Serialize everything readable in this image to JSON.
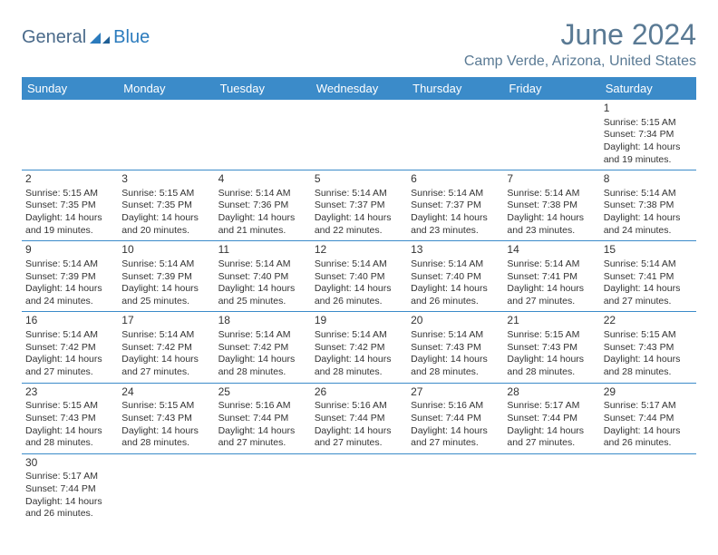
{
  "logo": {
    "part1": "General",
    "part2": "Blue"
  },
  "title": "June 2024",
  "location": "Camp Verde, Arizona, United States",
  "colors": {
    "header_bg": "#3b8bc9",
    "header_text": "#ffffff",
    "title_color": "#5a7a94",
    "border_color": "#3b8bc9",
    "body_text": "#333333"
  },
  "daysOfWeek": [
    "Sunday",
    "Monday",
    "Tuesday",
    "Wednesday",
    "Thursday",
    "Friday",
    "Saturday"
  ],
  "weeks": [
    [
      null,
      null,
      null,
      null,
      null,
      null,
      {
        "n": "1",
        "sr": "Sunrise: 5:15 AM",
        "ss": "Sunset: 7:34 PM",
        "d1": "Daylight: 14 hours",
        "d2": "and 19 minutes."
      }
    ],
    [
      {
        "n": "2",
        "sr": "Sunrise: 5:15 AM",
        "ss": "Sunset: 7:35 PM",
        "d1": "Daylight: 14 hours",
        "d2": "and 19 minutes."
      },
      {
        "n": "3",
        "sr": "Sunrise: 5:15 AM",
        "ss": "Sunset: 7:35 PM",
        "d1": "Daylight: 14 hours",
        "d2": "and 20 minutes."
      },
      {
        "n": "4",
        "sr": "Sunrise: 5:14 AM",
        "ss": "Sunset: 7:36 PM",
        "d1": "Daylight: 14 hours",
        "d2": "and 21 minutes."
      },
      {
        "n": "5",
        "sr": "Sunrise: 5:14 AM",
        "ss": "Sunset: 7:37 PM",
        "d1": "Daylight: 14 hours",
        "d2": "and 22 minutes."
      },
      {
        "n": "6",
        "sr": "Sunrise: 5:14 AM",
        "ss": "Sunset: 7:37 PM",
        "d1": "Daylight: 14 hours",
        "d2": "and 23 minutes."
      },
      {
        "n": "7",
        "sr": "Sunrise: 5:14 AM",
        "ss": "Sunset: 7:38 PM",
        "d1": "Daylight: 14 hours",
        "d2": "and 23 minutes."
      },
      {
        "n": "8",
        "sr": "Sunrise: 5:14 AM",
        "ss": "Sunset: 7:38 PM",
        "d1": "Daylight: 14 hours",
        "d2": "and 24 minutes."
      }
    ],
    [
      {
        "n": "9",
        "sr": "Sunrise: 5:14 AM",
        "ss": "Sunset: 7:39 PM",
        "d1": "Daylight: 14 hours",
        "d2": "and 24 minutes."
      },
      {
        "n": "10",
        "sr": "Sunrise: 5:14 AM",
        "ss": "Sunset: 7:39 PM",
        "d1": "Daylight: 14 hours",
        "d2": "and 25 minutes."
      },
      {
        "n": "11",
        "sr": "Sunrise: 5:14 AM",
        "ss": "Sunset: 7:40 PM",
        "d1": "Daylight: 14 hours",
        "d2": "and 25 minutes."
      },
      {
        "n": "12",
        "sr": "Sunrise: 5:14 AM",
        "ss": "Sunset: 7:40 PM",
        "d1": "Daylight: 14 hours",
        "d2": "and 26 minutes."
      },
      {
        "n": "13",
        "sr": "Sunrise: 5:14 AM",
        "ss": "Sunset: 7:40 PM",
        "d1": "Daylight: 14 hours",
        "d2": "and 26 minutes."
      },
      {
        "n": "14",
        "sr": "Sunrise: 5:14 AM",
        "ss": "Sunset: 7:41 PM",
        "d1": "Daylight: 14 hours",
        "d2": "and 27 minutes."
      },
      {
        "n": "15",
        "sr": "Sunrise: 5:14 AM",
        "ss": "Sunset: 7:41 PM",
        "d1": "Daylight: 14 hours",
        "d2": "and 27 minutes."
      }
    ],
    [
      {
        "n": "16",
        "sr": "Sunrise: 5:14 AM",
        "ss": "Sunset: 7:42 PM",
        "d1": "Daylight: 14 hours",
        "d2": "and 27 minutes."
      },
      {
        "n": "17",
        "sr": "Sunrise: 5:14 AM",
        "ss": "Sunset: 7:42 PM",
        "d1": "Daylight: 14 hours",
        "d2": "and 27 minutes."
      },
      {
        "n": "18",
        "sr": "Sunrise: 5:14 AM",
        "ss": "Sunset: 7:42 PM",
        "d1": "Daylight: 14 hours",
        "d2": "and 28 minutes."
      },
      {
        "n": "19",
        "sr": "Sunrise: 5:14 AM",
        "ss": "Sunset: 7:42 PM",
        "d1": "Daylight: 14 hours",
        "d2": "and 28 minutes."
      },
      {
        "n": "20",
        "sr": "Sunrise: 5:14 AM",
        "ss": "Sunset: 7:43 PM",
        "d1": "Daylight: 14 hours",
        "d2": "and 28 minutes."
      },
      {
        "n": "21",
        "sr": "Sunrise: 5:15 AM",
        "ss": "Sunset: 7:43 PM",
        "d1": "Daylight: 14 hours",
        "d2": "and 28 minutes."
      },
      {
        "n": "22",
        "sr": "Sunrise: 5:15 AM",
        "ss": "Sunset: 7:43 PM",
        "d1": "Daylight: 14 hours",
        "d2": "and 28 minutes."
      }
    ],
    [
      {
        "n": "23",
        "sr": "Sunrise: 5:15 AM",
        "ss": "Sunset: 7:43 PM",
        "d1": "Daylight: 14 hours",
        "d2": "and 28 minutes."
      },
      {
        "n": "24",
        "sr": "Sunrise: 5:15 AM",
        "ss": "Sunset: 7:43 PM",
        "d1": "Daylight: 14 hours",
        "d2": "and 28 minutes."
      },
      {
        "n": "25",
        "sr": "Sunrise: 5:16 AM",
        "ss": "Sunset: 7:44 PM",
        "d1": "Daylight: 14 hours",
        "d2": "and 27 minutes."
      },
      {
        "n": "26",
        "sr": "Sunrise: 5:16 AM",
        "ss": "Sunset: 7:44 PM",
        "d1": "Daylight: 14 hours",
        "d2": "and 27 minutes."
      },
      {
        "n": "27",
        "sr": "Sunrise: 5:16 AM",
        "ss": "Sunset: 7:44 PM",
        "d1": "Daylight: 14 hours",
        "d2": "and 27 minutes."
      },
      {
        "n": "28",
        "sr": "Sunrise: 5:17 AM",
        "ss": "Sunset: 7:44 PM",
        "d1": "Daylight: 14 hours",
        "d2": "and 27 minutes."
      },
      {
        "n": "29",
        "sr": "Sunrise: 5:17 AM",
        "ss": "Sunset: 7:44 PM",
        "d1": "Daylight: 14 hours",
        "d2": "and 26 minutes."
      }
    ],
    [
      {
        "n": "30",
        "sr": "Sunrise: 5:17 AM",
        "ss": "Sunset: 7:44 PM",
        "d1": "Daylight: 14 hours",
        "d2": "and 26 minutes."
      },
      null,
      null,
      null,
      null,
      null,
      null
    ]
  ]
}
